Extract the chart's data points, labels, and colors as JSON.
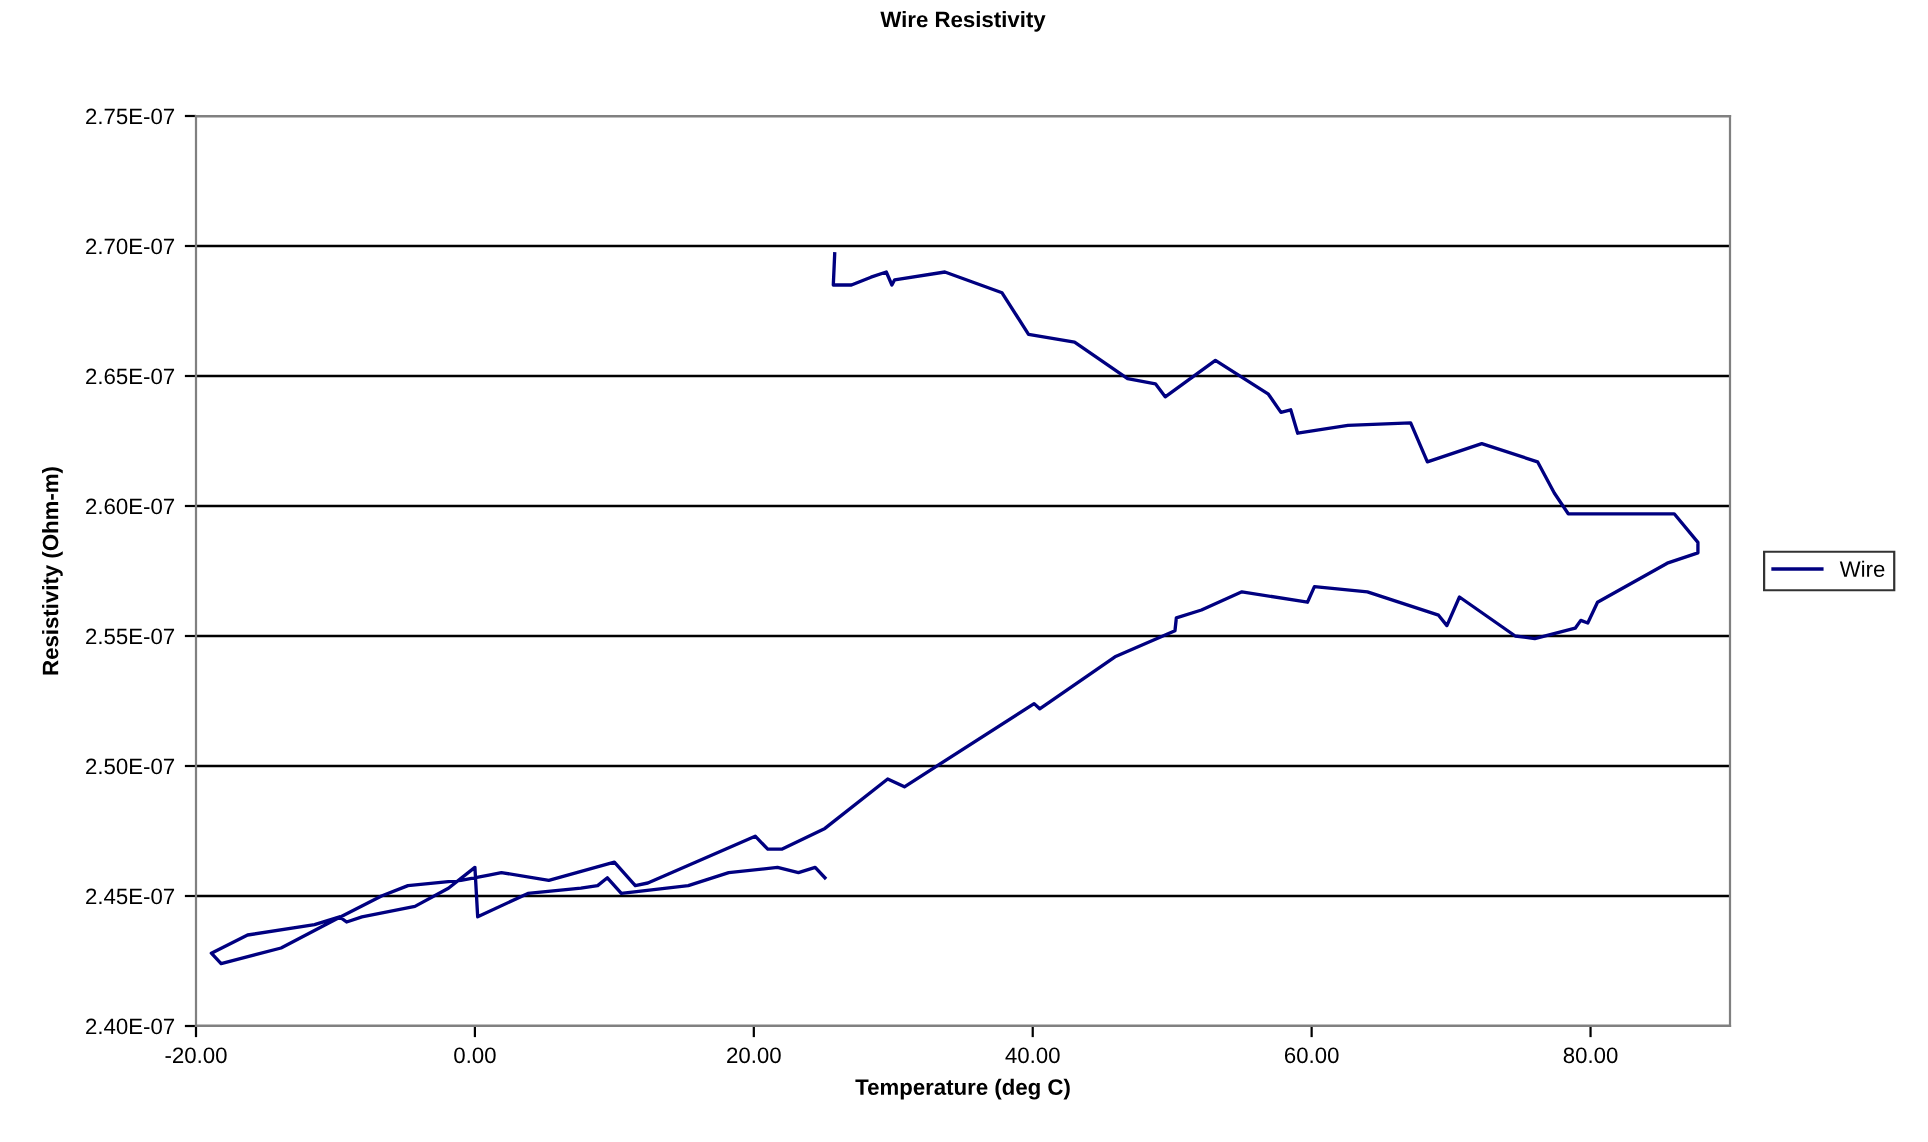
{
  "chart_data": {
    "type": "line",
    "title": "Wire Resistivity",
    "xlabel": "Temperature (deg C)",
    "ylabel": "Resistivity (Ohm-m)",
    "xlim": [
      -20,
      90
    ],
    "xticks": [
      {
        "value": -20,
        "label": "-20.00"
      },
      {
        "value": 0,
        "label": "0.00"
      },
      {
        "value": 20,
        "label": "20.00"
      },
      {
        "value": 40,
        "label": "40.00"
      },
      {
        "value": 60,
        "label": "60.00"
      },
      {
        "value": 80,
        "label": "80.00"
      }
    ],
    "ylim": [
      2.4e-07,
      2.75e-07
    ],
    "yticks": [
      {
        "value": 2.4e-07,
        "label": "2.40E-07"
      },
      {
        "value": 2.45e-07,
        "label": "2.45E-07"
      },
      {
        "value": 2.5e-07,
        "label": "2.50E-07"
      },
      {
        "value": 2.55e-07,
        "label": "2.55E-07"
      },
      {
        "value": 2.6e-07,
        "label": "2.60E-07"
      },
      {
        "value": 2.65e-07,
        "label": "2.65E-07"
      },
      {
        "value": 2.7e-07,
        "label": "2.70E-07"
      },
      {
        "value": 2.75e-07,
        "label": "2.75E-07"
      }
    ],
    "grid": "y",
    "legend": "right",
    "marker": "none",
    "line_style": "solid",
    "series": [
      {
        "name": "Wire",
        "color": "#000080",
        "x": [
          25.8,
          25.7,
          27.0,
          28.4,
          29.5,
          29.9,
          30.1,
          33.7,
          37.8,
          39.7,
          43.0,
          46.8,
          48.8,
          49.5,
          53.1,
          56.9,
          57.8,
          58.5,
          59.0,
          62.6,
          67.1,
          68.3,
          72.2,
          76.2,
          77.4,
          78.4,
          86.0,
          87.7,
          87.7,
          85.5,
          80.5,
          79.8,
          79.3,
          78.9,
          76.0,
          74.6,
          70.6,
          69.7,
          69.1,
          64.0,
          60.2,
          59.7,
          55.0,
          52.1,
          50.3,
          50.2,
          45.9,
          40.5,
          40.1,
          30.8,
          29.6,
          25.1,
          22.0,
          21.0,
          20.1,
          12.4,
          11.5,
          10.0,
          5.3,
          1.9,
          1.0,
          -1.0,
          -4.8,
          -6.7,
          -10.0,
          -13.9,
          -18.2,
          -18.9,
          -16.3,
          -11.5,
          -9.7,
          -9.2,
          -8.1,
          -4.3,
          -1.9,
          0.0,
          0.2,
          3.8,
          7.6,
          8.8,
          9.5,
          10.5,
          15.3,
          18.2,
          21.7,
          23.2,
          24.4,
          25.1
        ],
        "values": [
          2.697e-07,
          2.685e-07,
          2.685e-07,
          2.688e-07,
          2.69e-07,
          2.685e-07,
          2.687e-07,
          2.69e-07,
          2.682e-07,
          2.666e-07,
          2.663e-07,
          2.649e-07,
          2.647e-07,
          2.642e-07,
          2.656e-07,
          2.643e-07,
          2.636e-07,
          2.637e-07,
          2.628e-07,
          2.631e-07,
          2.632e-07,
          2.617e-07,
          2.624e-07,
          2.617e-07,
          2.605e-07,
          2.597e-07,
          2.597e-07,
          2.586e-07,
          2.582e-07,
          2.578e-07,
          2.563e-07,
          2.555e-07,
          2.556e-07,
          2.553e-07,
          2.549e-07,
          2.55e-07,
          2.565e-07,
          2.554e-07,
          2.558e-07,
          2.567e-07,
          2.569e-07,
          2.563e-07,
          2.567e-07,
          2.56e-07,
          2.557e-07,
          2.552e-07,
          2.542e-07,
          2.522e-07,
          2.524e-07,
          2.492e-07,
          2.495e-07,
          2.476e-07,
          2.468e-07,
          2.468e-07,
          2.473e-07,
          2.455e-07,
          2.454e-07,
          2.463e-07,
          2.456e-07,
          2.459e-07,
          2.458e-07,
          2.456e-07,
          2.454e-07,
          2.45e-07,
          2.441e-07,
          2.43e-07,
          2.424e-07,
          2.428e-07,
          2.435e-07,
          2.439e-07,
          2.442e-07,
          2.44e-07,
          2.442e-07,
          2.446e-07,
          2.453e-07,
          2.461e-07,
          2.442e-07,
          2.451e-07,
          2.453e-07,
          2.454e-07,
          2.457e-07,
          2.451e-07,
          2.454e-07,
          2.459e-07,
          2.461e-07,
          2.459e-07,
          2.461e-07,
          2.457e-07
        ]
      }
    ]
  }
}
